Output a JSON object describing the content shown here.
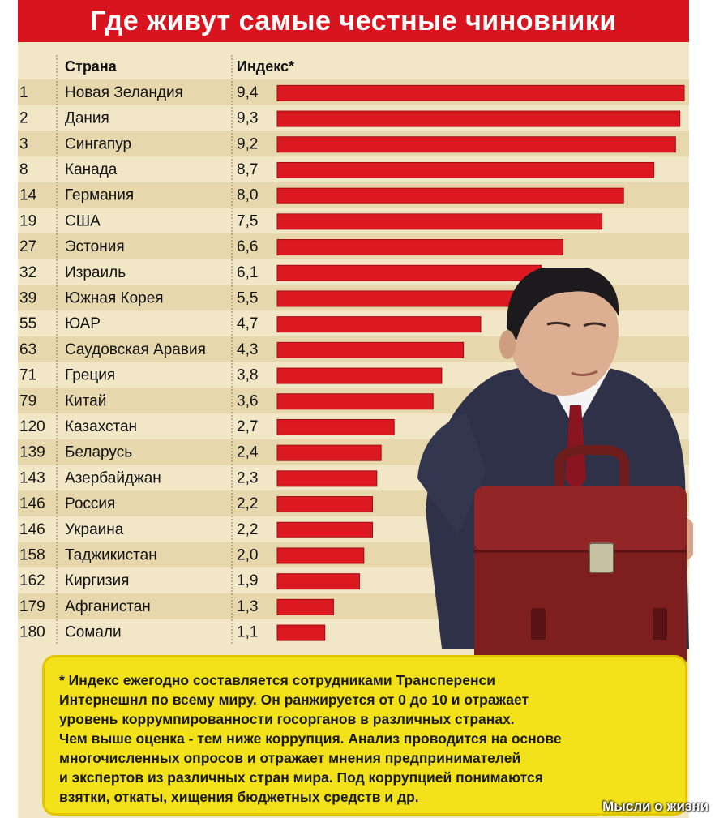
{
  "header": {
    "title": "Где живут самые честные чиновники"
  },
  "chart_data": {
    "type": "bar",
    "orientation": "horizontal",
    "title": "Где живут самые честные чиновники",
    "column_headers": {
      "rank": "",
      "country": "Страна",
      "index": "Индекс*"
    },
    "xlim": [
      0,
      10
    ],
    "grid": false,
    "rows": [
      {
        "rank": "1",
        "country": "Новая Зеландия",
        "label": "9,4",
        "value": 9.4
      },
      {
        "rank": "2",
        "country": "Дания",
        "label": "9,3",
        "value": 9.3
      },
      {
        "rank": "3",
        "country": "Сингапур",
        "label": "9,2",
        "value": 9.2
      },
      {
        "rank": "8",
        "country": "Канада",
        "label": "8,7",
        "value": 8.7
      },
      {
        "rank": "14",
        "country": "Германия",
        "label": "8,0",
        "value": 8.0
      },
      {
        "rank": "19",
        "country": "США",
        "label": "7,5",
        "value": 7.5
      },
      {
        "rank": "27",
        "country": "Эстония",
        "label": "6,6",
        "value": 6.6
      },
      {
        "rank": "32",
        "country": "Израиль",
        "label": "6,1",
        "value": 6.1
      },
      {
        "rank": "39",
        "country": "Южная Корея",
        "label": "5,5",
        "value": 5.5
      },
      {
        "rank": "55",
        "country": "ЮАР",
        "label": "4,7",
        "value": 4.7
      },
      {
        "rank": "63",
        "country": "Саудовская Аравия",
        "label": "4,3",
        "value": 4.3
      },
      {
        "rank": "71",
        "country": "Греция",
        "label": "3,8",
        "value": 3.8
      },
      {
        "rank": "79",
        "country": "Китай",
        "label": "3,6",
        "value": 3.6
      },
      {
        "rank": "120",
        "country": "Казахстан",
        "label": "2,7",
        "value": 2.7
      },
      {
        "rank": "139",
        "country": "Беларусь",
        "label": "2,4",
        "value": 2.4
      },
      {
        "rank": "143",
        "country": "Азербайджан",
        "label": "2,3",
        "value": 2.3
      },
      {
        "rank": "146",
        "country": "Россия",
        "label": "2,2",
        "value": 2.2
      },
      {
        "rank": "146",
        "country": "Украина",
        "label": "2,2",
        "value": 2.2
      },
      {
        "rank": "158",
        "country": "Таджикистан",
        "label": "2,0",
        "value": 2.0
      },
      {
        "rank": "162",
        "country": "Киргизия",
        "label": "1,9",
        "value": 1.9
      },
      {
        "rank": "179",
        "country": "Афганистан",
        "label": "1,3",
        "value": 1.3
      },
      {
        "rank": "180",
        "country": "Сомали",
        "label": "1,1",
        "value": 1.1
      }
    ]
  },
  "footnote": {
    "lines": [
      "* Индекс ежегодно составляется сотрудниками Трансперенси",
      "Интернешнл по всему миру. Он ранжируется от 0 до 10 и отражает",
      "уровень коррумпированности госорганов в различных странах.",
      "Чем выше оценка - тем ниже коррупция. Анализ проводится на основе",
      "многочисленных опросов и отражает мнения предпринимателей",
      "и экспертов из различных стран мира. Под коррупцией понимаются",
      "взятки, откаты, хищения бюджетных средств и др."
    ]
  },
  "watermark": "Мысли о жизни",
  "colors": {
    "bar": "#dc1820",
    "title_bg": "#d8141e",
    "stripe": "#e7d7ac",
    "background": "#f1e6c6",
    "note_bg": "#f3e21a"
  },
  "illustration": {
    "subject": "official-with-briefcase-illustration"
  }
}
